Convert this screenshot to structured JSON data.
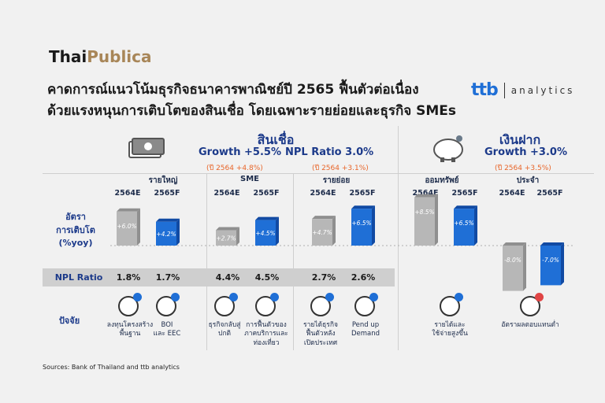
{
  "logo": {
    "part1": "Thai",
    "part2": "Publica"
  },
  "headline": {
    "line1": "คาดการณ์แนวโน้มธุรกิจธนาคารพาณิชย์ปี 2565 ฟื้นตัวต่อเนื่อง",
    "line2": "ด้วยแรงหนุนการเติบโตของสินเชื่อ โดยเฉพาะรายย่อยและธุรกิจ SMEs"
  },
  "brand": {
    "ttb": "ttb",
    "analytics": "analytics"
  },
  "loans": {
    "title": "สินเชื่อ",
    "growth": "Growth +5.5%",
    "growth_prev": "(ปี 2564 +4.8%)",
    "npl": "NPL Ratio 3.0%",
    "npl_prev": "(ปี 2564 +3.1%)",
    "icon": "money-stack-icon"
  },
  "deposits": {
    "title": "เงินฝาก",
    "growth": "Growth +3.0%",
    "growth_prev": "(ปี 2564 +3.5%)",
    "icon": "piggy-bank-icon"
  },
  "row_labels": {
    "growth": "อัตรา\nการเติบโต\n(%yoy)",
    "npl": "NPL Ratio",
    "factors": "ปัจจัย"
  },
  "colors": {
    "bar_2564": "#b7b7b7",
    "bar_2565": "#1f6fd6",
    "accent": "#1c3a8a",
    "sub": "#e8662a"
  },
  "chart_data": {
    "type": "bar",
    "groups": [
      {
        "name": "รายใหญ่",
        "npl": [
          "1.8%",
          "1.7%"
        ],
        "factors": [
          "ลงทุนโครงสร้าง\nพื้นฐาน",
          "BOI\nและ EEC"
        ],
        "factor_icons": [
          "road-investment-icon",
          "eec-icon"
        ]
      },
      {
        "name": "SME",
        "npl": [
          "4.4%",
          "4.5%"
        ],
        "factors": [
          "ธุรกิจกลับสู่\nปกติ",
          "การฟื้นตัวของ\nภาคบริการและ\nท่องเที่ยว"
        ],
        "factor_icons": [
          "business-icon",
          "tourism-icon"
        ]
      },
      {
        "name": "รายย่อย",
        "npl": [
          "2.7%",
          "2.6%"
        ],
        "factors": [
          "รายได้ธุรกิจ\nฟื้นตัวหลัง\nเปิดประเทศ",
          "Pend up\nDemand"
        ],
        "factor_icons": [
          "income-icon",
          "demand-icon"
        ]
      },
      {
        "name": "ออมทรัพย์",
        "npl": [],
        "factors": [
          "รายได้และ\nใช้จ่ายสูงขึ้น"
        ],
        "factor_icons": [
          "wallet-icon"
        ]
      },
      {
        "name": "ประจำ",
        "npl": [],
        "factors": [
          "อัตราผลตอบแทนต่ำ"
        ],
        "factor_icons": [
          "low-return-icon"
        ]
      }
    ],
    "series": [
      {
        "name": "2564E",
        "values": [
          6.0,
          2.7,
          4.7,
          8.5,
          -8.0
        ]
      },
      {
        "name": "2565F",
        "values": [
          4.2,
          4.5,
          6.5,
          6.5,
          -7.0
        ]
      }
    ],
    "bar_labels": [
      [
        "+6.0%",
        "+2.7%",
        "+4.7%",
        "+8.5%",
        "-8.0%"
      ],
      [
        "+4.2%",
        "+4.5%",
        "+6.5%",
        "+6.5%",
        "-7.0%"
      ]
    ],
    "ylim": [
      -10,
      10
    ]
  },
  "source": "Sources: Bank of Thailand and ttb analytics"
}
